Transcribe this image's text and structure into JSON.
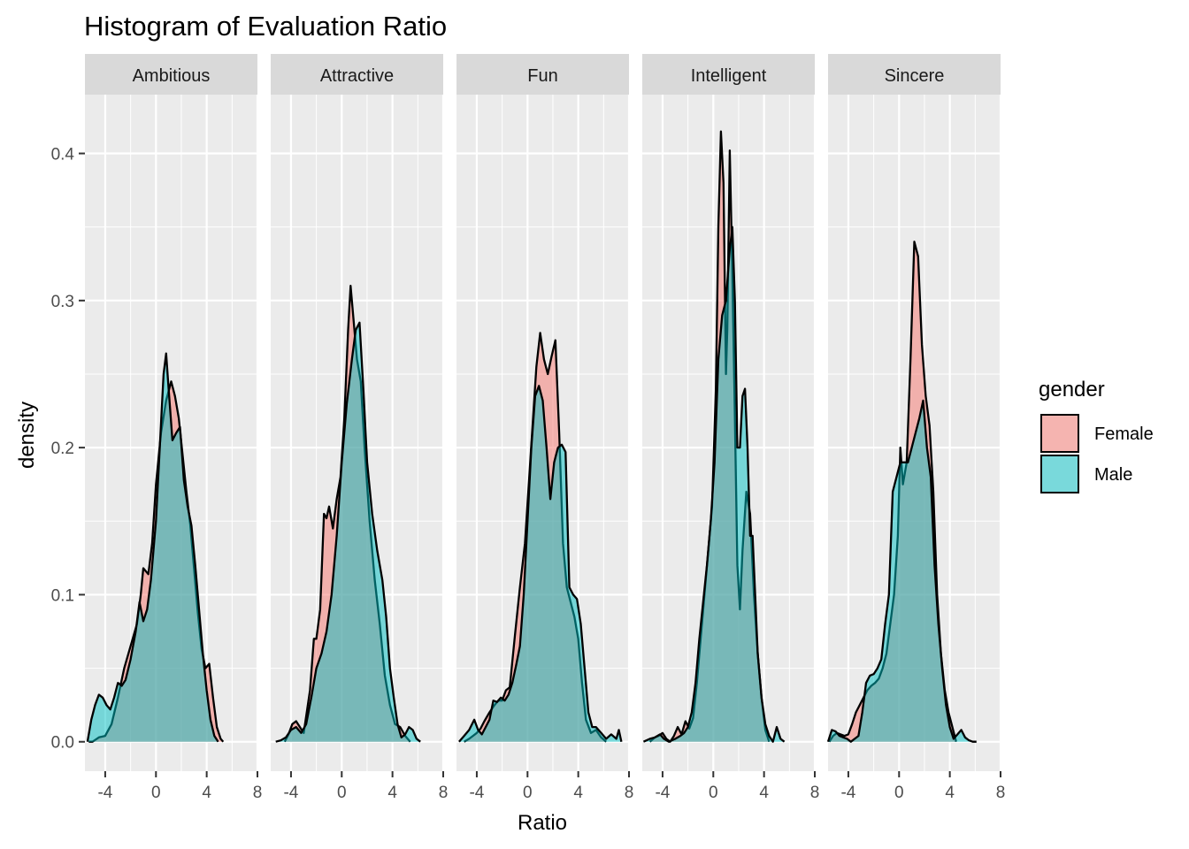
{
  "chart_data": {
    "type": "area",
    "title": "Histogram of Evaluation Ratio",
    "xlabel": "Ratio",
    "ylabel": "density",
    "xlim": [
      -5.6,
      8
    ],
    "ylim": [
      -0.02,
      0.44
    ],
    "x_ticks": [
      -4,
      0,
      4,
      8
    ],
    "x_tick_labels": [
      "-4",
      "0",
      "4",
      "8"
    ],
    "y_ticks": [
      0.0,
      0.1,
      0.2,
      0.3,
      0.4
    ],
    "y_tick_labels": [
      "0.0",
      "0.1",
      "0.2",
      "0.3",
      "0.4"
    ],
    "grid": true,
    "legend": {
      "title": "gender",
      "placement": "right",
      "entries": [
        {
          "label": "Female",
          "color": "#F8766D"
        },
        {
          "label": "Male",
          "color": "#00BFC4"
        }
      ]
    },
    "panels": [
      {
        "name": "Ambitious",
        "series": [
          {
            "name": "Female",
            "x": [
              -5.3,
              -5.0,
              -4.5,
              -4.0,
              -3.5,
              -3.0,
              -2.5,
              -2.0,
              -1.5,
              -1.2,
              -1.0,
              -0.6,
              -0.3,
              0.0,
              0.4,
              0.8,
              1.2,
              1.5,
              1.8,
              2.1,
              2.4,
              2.7,
              3.0,
              3.3,
              3.6,
              3.9,
              4.2,
              4.5,
              4.8,
              5.1,
              5.3
            ],
            "y": [
              0.0,
              0.0,
              0.003,
              0.004,
              0.012,
              0.03,
              0.05,
              0.065,
              0.08,
              0.1,
              0.118,
              0.114,
              0.135,
              0.175,
              0.21,
              0.232,
              0.245,
              0.235,
              0.22,
              0.195,
              0.17,
              0.148,
              0.118,
              0.088,
              0.063,
              0.05,
              0.053,
              0.03,
              0.01,
              0.002,
              0.0
            ]
          },
          {
            "name": "Male",
            "x": [
              -5.4,
              -5.1,
              -4.8,
              -4.5,
              -4.2,
              -3.9,
              -3.6,
              -3.3,
              -3.0,
              -2.7,
              -2.4,
              -2.0,
              -1.6,
              -1.3,
              -1.0,
              -0.7,
              -0.4,
              0.0,
              0.3,
              0.6,
              0.8,
              1.0,
              1.3,
              1.6,
              1.9,
              2.2,
              2.5,
              2.8,
              3.1,
              3.4,
              3.7,
              4.0,
              4.3,
              4.6,
              4.9
            ],
            "y": [
              0.0,
              0.015,
              0.025,
              0.032,
              0.03,
              0.025,
              0.022,
              0.03,
              0.04,
              0.038,
              0.042,
              0.056,
              0.075,
              0.095,
              0.082,
              0.09,
              0.11,
              0.15,
              0.2,
              0.25,
              0.264,
              0.24,
              0.205,
              0.21,
              0.214,
              0.178,
              0.16,
              0.147,
              0.12,
              0.09,
              0.06,
              0.035,
              0.015,
              0.004,
              0.0
            ]
          }
        ]
      },
      {
        "name": "Attractive",
        "series": [
          {
            "name": "Female",
            "x": [
              -4.5,
              -4.2,
              -3.9,
              -3.6,
              -3.3,
              -3.0,
              -2.5,
              -2.2,
              -2.0,
              -1.7,
              -1.4,
              -1.2,
              -1.0,
              -0.7,
              -0.4,
              -0.1,
              0.2,
              0.5,
              0.7,
              0.9,
              1.2,
              1.5,
              1.8,
              2.2,
              2.6,
              3.0,
              3.4,
              3.8,
              4.2,
              4.6,
              5.0,
              5.4
            ],
            "y": [
              0.0,
              0.005,
              0.012,
              0.014,
              0.01,
              0.006,
              0.035,
              0.07,
              0.07,
              0.09,
              0.155,
              0.152,
              0.16,
              0.145,
              0.165,
              0.18,
              0.22,
              0.28,
              0.31,
              0.29,
              0.26,
              0.245,
              0.2,
              0.15,
              0.11,
              0.08,
              0.045,
              0.025,
              0.012,
              0.01,
              0.004,
              0.0
            ]
          },
          {
            "name": "Male",
            "x": [
              -5.2,
              -4.8,
              -4.4,
              -4.0,
              -3.6,
              -3.2,
              -2.8,
              -2.4,
              -2.0,
              -1.6,
              -1.2,
              -0.8,
              -0.4,
              0.0,
              0.4,
              0.8,
              1.1,
              1.4,
              1.7,
              2.0,
              2.4,
              2.8,
              3.2,
              3.5,
              3.8,
              4.1,
              4.4,
              4.7,
              5.0,
              5.3,
              5.6,
              5.9,
              6.2
            ],
            "y": [
              0.0,
              0.001,
              0.003,
              0.008,
              0.01,
              0.006,
              0.012,
              0.03,
              0.05,
              0.06,
              0.075,
              0.1,
              0.14,
              0.19,
              0.23,
              0.26,
              0.28,
              0.285,
              0.24,
              0.19,
              0.155,
              0.13,
              0.11,
              0.085,
              0.05,
              0.03,
              0.012,
              0.003,
              0.005,
              0.01,
              0.008,
              0.002,
              0.0
            ]
          }
        ]
      },
      {
        "name": "Fun",
        "series": [
          {
            "name": "Female",
            "x": [
              -5.0,
              -4.6,
              -4.3,
              -4.0,
              -3.7,
              -3.4,
              -3.0,
              -2.6,
              -2.3,
              -2.0,
              -1.7,
              -1.4,
              -1.0,
              -0.6,
              -0.2,
              0.1,
              0.4,
              0.7,
              1.0,
              1.3,
              1.6,
              1.9,
              2.2,
              2.5,
              2.8,
              3.1,
              3.4,
              3.7,
              4.0,
              4.3,
              4.6,
              5.0,
              5.4,
              5.8,
              6.2
            ],
            "y": [
              0.0,
              0.002,
              0.004,
              0.006,
              0.009,
              0.014,
              0.02,
              0.025,
              0.028,
              0.028,
              0.035,
              0.037,
              0.072,
              0.105,
              0.135,
              0.175,
              0.215,
              0.255,
              0.278,
              0.26,
              0.25,
              0.262,
              0.273,
              0.21,
              0.135,
              0.105,
              0.095,
              0.085,
              0.07,
              0.04,
              0.015,
              0.006,
              0.008,
              0.003,
              0.0
            ]
          },
          {
            "name": "Male",
            "x": [
              -5.4,
              -5.0,
              -4.6,
              -4.2,
              -3.9,
              -3.6,
              -3.3,
              -3.0,
              -2.7,
              -2.4,
              -2.1,
              -1.8,
              -1.5,
              -1.2,
              -0.9,
              -0.6,
              -0.3,
              0.0,
              0.3,
              0.6,
              0.9,
              1.2,
              1.5,
              1.8,
              2.1,
              2.4,
              2.7,
              3.0,
              3.3,
              3.6,
              3.9,
              4.2,
              4.5,
              4.8,
              5.1,
              5.4,
              5.8,
              6.2,
              6.6,
              7.0,
              7.2,
              7.4
            ],
            "y": [
              0.0,
              0.004,
              0.008,
              0.015,
              0.008,
              0.005,
              0.01,
              0.015,
              0.028,
              0.027,
              0.03,
              0.028,
              0.032,
              0.04,
              0.052,
              0.065,
              0.1,
              0.15,
              0.2,
              0.235,
              0.242,
              0.232,
              0.2,
              0.165,
              0.19,
              0.2,
              0.202,
              0.197,
              0.105,
              0.1,
              0.097,
              0.08,
              0.05,
              0.02,
              0.01,
              0.01,
              0.006,
              0.002,
              0.005,
              0.002,
              0.008,
              0.0
            ]
          }
        ]
      },
      {
        "name": "Intelligent",
        "series": [
          {
            "name": "Female",
            "x": [
              -5.0,
              -4.6,
              -4.3,
              -4.0,
              -3.7,
              -3.4,
              -3.1,
              -2.8,
              -2.5,
              -2.2,
              -1.9,
              -1.6,
              -1.3,
              -1.0,
              -0.7,
              -0.4,
              -0.1,
              0.2,
              0.4,
              0.6,
              0.8,
              1.0,
              1.1,
              1.3,
              1.5,
              1.7,
              1.9,
              2.1,
              2.3,
              2.6,
              2.9,
              3.2,
              3.5,
              3.8,
              4.1,
              4.4
            ],
            "y": [
              0.0,
              0.003,
              0.004,
              0.006,
              0.002,
              0.0,
              0.004,
              0.01,
              0.005,
              0.014,
              0.009,
              0.016,
              0.04,
              0.07,
              0.1,
              0.13,
              0.16,
              0.24,
              0.35,
              0.415,
              0.38,
              0.25,
              0.28,
              0.402,
              0.32,
              0.22,
              0.12,
              0.09,
              0.13,
              0.17,
              0.155,
              0.1,
              0.06,
              0.03,
              0.008,
              0.0
            ]
          },
          {
            "name": "Male",
            "x": [
              -5.5,
              -5.0,
              -4.6,
              -4.2,
              -3.9,
              -3.5,
              -3.0,
              -2.6,
              -2.3,
              -2.0,
              -1.7,
              -1.4,
              -1.1,
              -0.8,
              -0.5,
              -0.2,
              0.1,
              0.4,
              0.7,
              1.0,
              1.3,
              1.5,
              1.7,
              1.9,
              2.1,
              2.3,
              2.5,
              2.7,
              2.9,
              3.1,
              3.3,
              3.5,
              3.8,
              4.1,
              4.4,
              4.7,
              5.0,
              5.3,
              5.6
            ],
            "y": [
              0.0,
              0.002,
              0.003,
              0.005,
              0.002,
              0.0,
              0.002,
              0.004,
              0.006,
              0.01,
              0.02,
              0.04,
              0.07,
              0.095,
              0.12,
              0.15,
              0.19,
              0.26,
              0.29,
              0.3,
              0.335,
              0.35,
              0.3,
              0.2,
              0.2,
              0.235,
              0.24,
              0.2,
              0.14,
              0.14,
              0.1,
              0.06,
              0.03,
              0.012,
              0.004,
              0.0,
              0.01,
              0.002,
              0.0
            ]
          }
        ]
      },
      {
        "name": "Sincere",
        "series": [
          {
            "name": "Female",
            "x": [
              -5.5,
              -5.2,
              -4.9,
              -4.6,
              -4.3,
              -4.0,
              -3.7,
              -3.4,
              -3.1,
              -2.8,
              -2.5,
              -2.2,
              -1.9,
              -1.6,
              -1.3,
              -1.0,
              -0.7,
              -0.4,
              -0.1,
              0.1,
              0.3,
              0.6,
              0.9,
              1.2,
              1.5,
              1.8,
              2.1,
              2.4,
              2.7,
              3.0,
              3.3,
              3.6,
              3.9,
              4.2,
              4.5
            ],
            "y": [
              0.0,
              0.004,
              0.006,
              0.005,
              0.004,
              0.005,
              0.012,
              0.02,
              0.025,
              0.03,
              0.035,
              0.038,
              0.04,
              0.043,
              0.05,
              0.06,
              0.08,
              0.1,
              0.14,
              0.2,
              0.175,
              0.19,
              0.26,
              0.34,
              0.33,
              0.27,
              0.235,
              0.215,
              0.17,
              0.1,
              0.06,
              0.035,
              0.02,
              0.01,
              0.0
            ]
          },
          {
            "name": "Male",
            "x": [
              -5.6,
              -5.3,
              -5.0,
              -4.7,
              -4.4,
              -4.1,
              -3.8,
              -3.5,
              -3.2,
              -2.9,
              -2.6,
              -2.3,
              -2.0,
              -1.7,
              -1.4,
              -1.1,
              -0.8,
              -0.5,
              -0.2,
              0.1,
              0.4,
              0.7,
              1.0,
              1.3,
              1.6,
              1.9,
              2.2,
              2.5,
              2.8,
              3.1,
              3.4,
              3.7,
              4.0,
              4.3,
              4.6,
              4.9,
              5.2,
              5.5,
              5.8,
              6.1
            ],
            "y": [
              0.0,
              0.008,
              0.007,
              0.004,
              0.003,
              0.002,
              0.0,
              0.002,
              0.004,
              0.02,
              0.04,
              0.045,
              0.046,
              0.05,
              0.056,
              0.08,
              0.1,
              0.17,
              0.18,
              0.19,
              0.19,
              0.19,
              0.2,
              0.21,
              0.22,
              0.232,
              0.2,
              0.18,
              0.12,
              0.08,
              0.05,
              0.025,
              0.01,
              0.002,
              0.005,
              0.008,
              0.003,
              0.001,
              0.0,
              0.0
            ]
          }
        ]
      }
    ]
  }
}
